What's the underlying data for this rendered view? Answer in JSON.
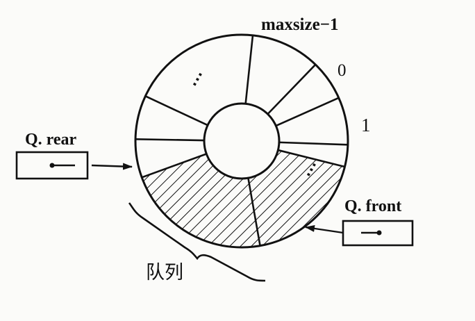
{
  "labels": {
    "maxsize": "maxsize−1",
    "zero": "0",
    "one": "1",
    "rear": "Q. rear",
    "front": "Q. front",
    "queue": "队列"
  },
  "ellipsis": "⋯",
  "colors": {
    "ink": "#111111",
    "background": "#fbfbf9"
  }
}
